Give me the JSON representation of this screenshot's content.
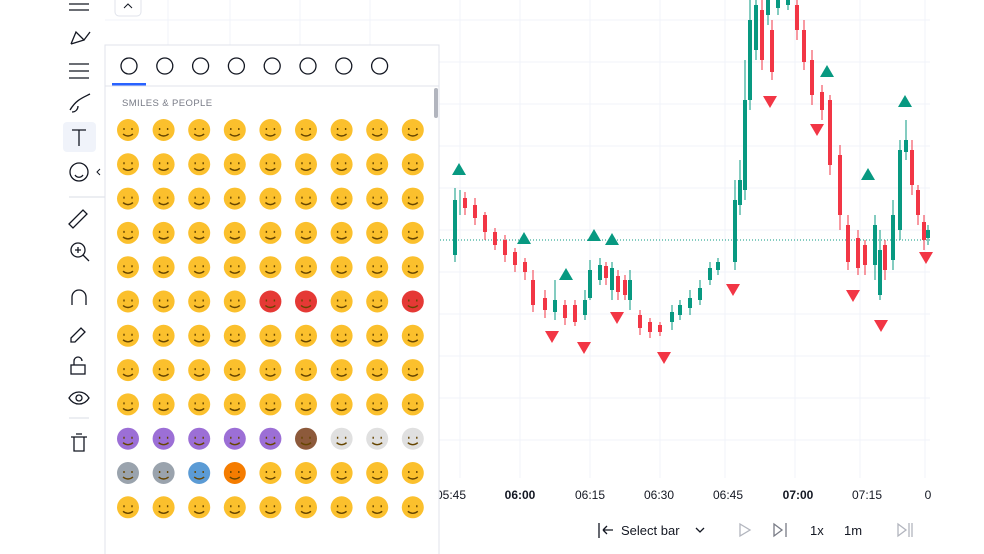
{
  "emoji_panel": {
    "section_title": "SMILES & PEOPLE"
  },
  "chart": {
    "time_labels": [
      "05:45",
      "06:00",
      "06:15",
      "06:30",
      "06:45",
      "07:00",
      "07:15",
      "0"
    ]
  },
  "bottom_toolbar": {
    "select_bar": "Select bar",
    "speed": "1x",
    "interval": "1m"
  }
}
